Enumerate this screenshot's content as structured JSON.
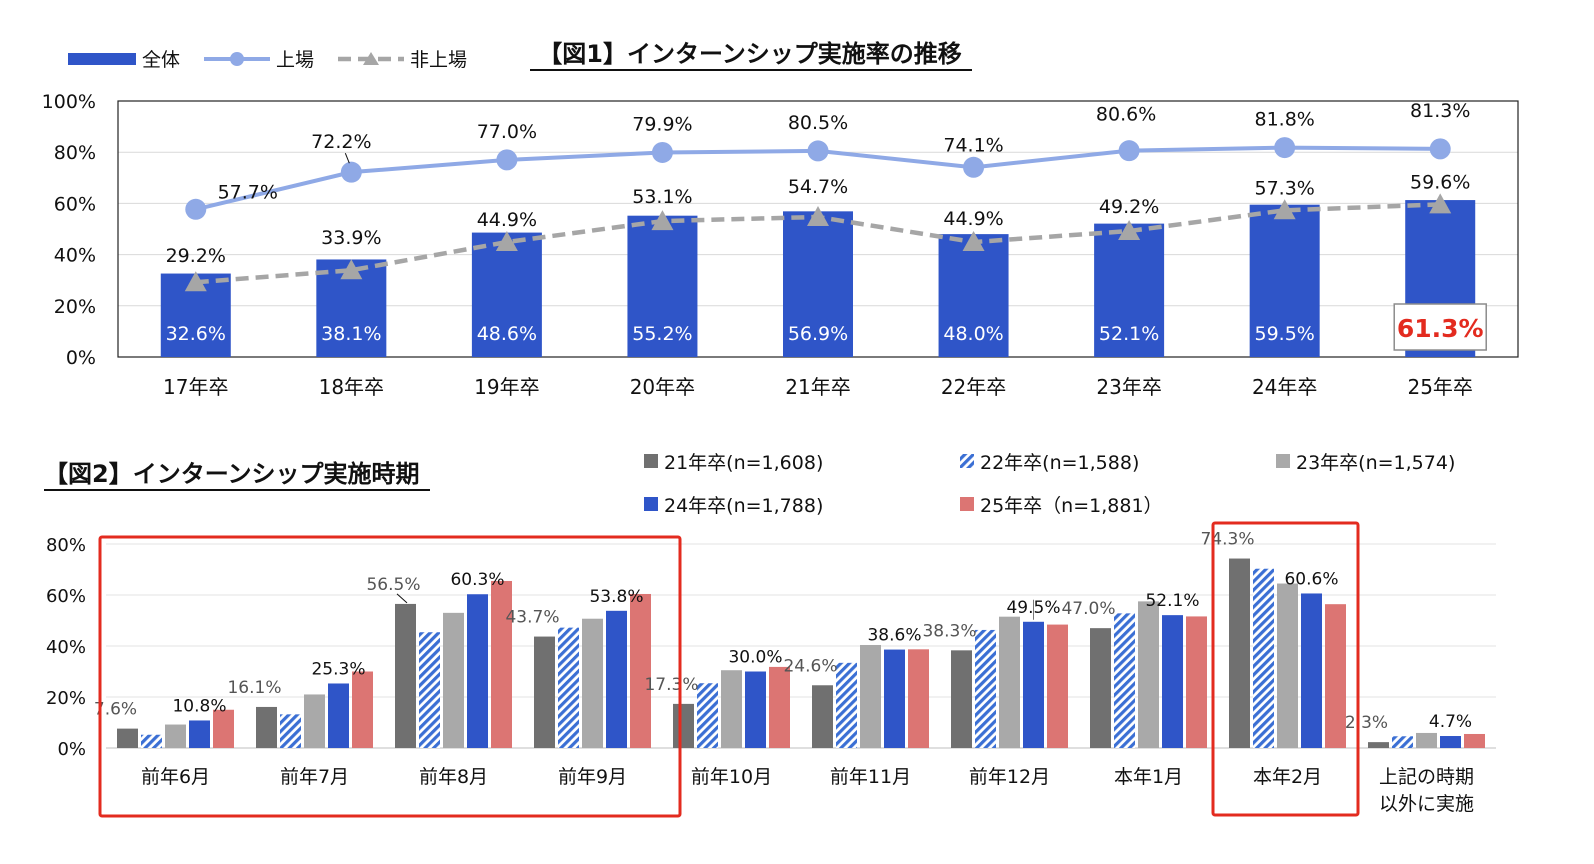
{
  "chart_data": [
    {
      "type": "bar+line",
      "title": "【図1】インターンシップ実施率の推移",
      "categories": [
        "17年卒",
        "18年卒",
        "19年卒",
        "20年卒",
        "21年卒",
        "22年卒",
        "23年卒",
        "24年卒",
        "25年卒"
      ],
      "yticks": [
        "0%",
        "20%",
        "40%",
        "60%",
        "80%",
        "100%"
      ],
      "ylim": [
        0,
        100
      ],
      "legend_placement": "top-left",
      "series": [
        {
          "name": "全体",
          "kind": "bar",
          "color": "#2f55c8",
          "values": [
            32.6,
            38.1,
            48.6,
            55.2,
            56.9,
            48.0,
            52.1,
            59.5,
            61.3
          ],
          "labels": [
            "32.6%",
            "38.1%",
            "48.6%",
            "55.2%",
            "56.9%",
            "48.0%",
            "52.1%",
            "59.5%",
            "61.3%"
          ]
        },
        {
          "name": "上場",
          "kind": "line",
          "color": "#8fa9e6",
          "values": [
            57.7,
            72.2,
            77.0,
            79.9,
            80.5,
            74.1,
            80.6,
            81.8,
            81.3
          ],
          "labels": [
            "57.7%",
            "72.2%",
            "77.0%",
            "79.9%",
            "80.5%",
            "74.1%",
            "80.6%",
            "81.8%",
            "81.3%"
          ]
        },
        {
          "name": "非上場",
          "kind": "dashed-line",
          "color": "#a6a6a6",
          "values": [
            29.2,
            33.9,
            44.9,
            53.1,
            54.7,
            44.9,
            49.2,
            57.3,
            59.6
          ],
          "labels": [
            "29.2%",
            "33.9%",
            "44.9%",
            "53.1%",
            "54.7%",
            "44.9%",
            "49.2%",
            "57.3%",
            "59.6%"
          ]
        }
      ],
      "highlight_color": "#e32b1f"
    },
    {
      "type": "bar",
      "title": "【図2】インターンシップ実施時期",
      "categories": [
        "前年6月",
        "前年7月",
        "前年8月",
        "前年9月",
        "前年10月",
        "前年11月",
        "前年12月",
        "本年1月",
        "本年2月",
        "上記の時期\n以外に実施"
      ],
      "yticks": [
        "0%",
        "20%",
        "40%",
        "60%",
        "80%"
      ],
      "ylim": [
        0,
        80
      ],
      "legend_placement": "top-right",
      "series": [
        {
          "name": "21年卒(n=1,608)",
          "color": "#707070",
          "pattern": "solid",
          "values": [
            7.6,
            16.1,
            56.5,
            43.7,
            17.3,
            24.6,
            38.3,
            47.0,
            74.3,
            2.3
          ]
        },
        {
          "name": "22年卒(n=1,588)",
          "color": "#3b6fd4",
          "pattern": "hatch",
          "values": [
            5.2,
            13.2,
            45.4,
            47.2,
            25.4,
            33.4,
            46.3,
            52.8,
            70.3,
            4.6
          ]
        },
        {
          "name": "23年卒(n=1,574)",
          "color": "#a9a9a9",
          "pattern": "solid",
          "values": [
            9.2,
            21.0,
            53.0,
            50.7,
            30.5,
            40.4,
            51.5,
            57.5,
            64.5,
            5.9
          ]
        },
        {
          "name": "24年卒(n=1,788)",
          "color": "#2f55c8",
          "pattern": "solid",
          "values": [
            10.8,
            25.3,
            60.3,
            53.8,
            30.0,
            38.6,
            49.5,
            52.1,
            60.6,
            4.7
          ]
        },
        {
          "name": "25年卒（n=1,881）",
          "color": "#dc7573",
          "pattern": "solid",
          "values": [
            15.0,
            30.0,
            65.5,
            60.4,
            31.8,
            38.7,
            48.4,
            51.6,
            56.4,
            5.5
          ]
        }
      ],
      "point_labels": [
        {
          "series": 0,
          "index": 0,
          "text": "7.6%"
        },
        {
          "series": 3,
          "index": 0,
          "text": "10.8%"
        },
        {
          "series": 0,
          "index": 1,
          "text": "16.1%"
        },
        {
          "series": 3,
          "index": 1,
          "text": "25.3%"
        },
        {
          "series": 0,
          "index": 2,
          "text": "56.5%"
        },
        {
          "series": 3,
          "index": 2,
          "text": "60.3%"
        },
        {
          "series": 0,
          "index": 3,
          "text": "43.7%"
        },
        {
          "series": 3,
          "index": 3,
          "text": "53.8%"
        },
        {
          "series": 0,
          "index": 4,
          "text": "17.3%"
        },
        {
          "series": 3,
          "index": 4,
          "text": "30.0%"
        },
        {
          "series": 0,
          "index": 5,
          "text": "24.6%"
        },
        {
          "series": 3,
          "index": 5,
          "text": "38.6%"
        },
        {
          "series": 0,
          "index": 6,
          "text": "38.3%"
        },
        {
          "series": 3,
          "index": 6,
          "text": "49.5%"
        },
        {
          "series": 0,
          "index": 7,
          "text": "47.0%"
        },
        {
          "series": 3,
          "index": 7,
          "text": "52.1%"
        },
        {
          "series": 0,
          "index": 8,
          "text": "74.3%"
        },
        {
          "series": 3,
          "index": 8,
          "text": "60.6%"
        },
        {
          "series": 0,
          "index": 9,
          "text": "2.3%"
        },
        {
          "series": 3,
          "index": 9,
          "text": "4.7%"
        }
      ],
      "highlight_color": "#e32b1f"
    }
  ]
}
